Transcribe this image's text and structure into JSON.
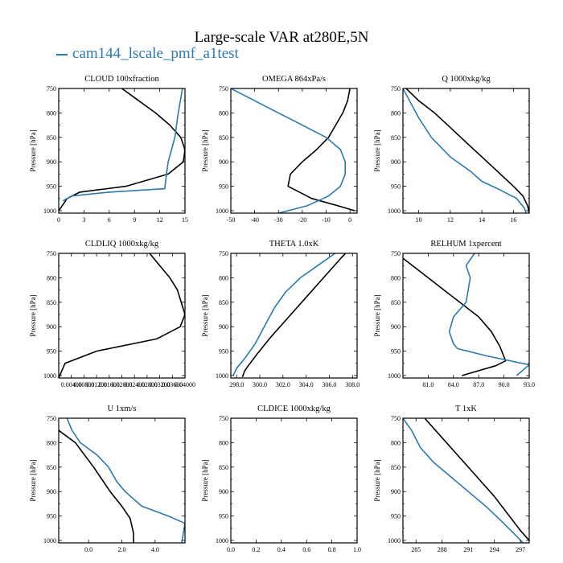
{
  "title": "Large-scale VAR at280E,5N",
  "legend": [
    {
      "label": "cam144_lscale_pmf_a1test",
      "color": "#2a7ab0"
    }
  ],
  "colors": {
    "series_black": "#000000",
    "series_blue": "#2a7ab0"
  },
  "chart_data": [
    {
      "type": "line",
      "title": "CLOUD  100xfraction",
      "ylabel": "Pressure [hPa]",
      "ylim": [
        1005,
        750
      ],
      "xlim": [
        0,
        15
      ],
      "yticks": [
        "750",
        "800",
        "850",
        "900",
        "950",
        "1000"
      ],
      "yticks_values": [
        750,
        800,
        850,
        900,
        950,
        1000
      ],
      "xticks": [
        "0",
        "3",
        "6",
        "9",
        "12",
        "15"
      ],
      "xticks_values": [
        0,
        3,
        6,
        9,
        12,
        15
      ],
      "series": [
        {
          "color": "#000000",
          "x": [
            7.5,
            9.5,
            11.5,
            13.2,
            14.5,
            15.0,
            14.8,
            13.0,
            8.0,
            2.5,
            1.0,
            0.0
          ],
          "y": [
            750,
            775,
            800,
            825,
            850,
            875,
            900,
            925,
            950,
            962,
            975,
            1000
          ]
        },
        {
          "color": "#2a7ab0",
          "x": [
            14.7,
            14.2,
            13.8,
            13.4,
            13.0,
            12.8,
            12.7,
            12.6,
            6.0,
            1.5,
            0.5
          ],
          "y": [
            750,
            800,
            850,
            875,
            900,
            925,
            940,
            955,
            962,
            970,
            980
          ]
        }
      ]
    },
    {
      "type": "line",
      "title": "OMEGA  864xPa/s",
      "ylabel": "Pressure [hPa]",
      "ylim": [
        1005,
        750
      ],
      "xlim": [
        -50,
        3
      ],
      "yticks": [
        "750",
        "800",
        "850",
        "900",
        "950",
        "1000"
      ],
      "yticks_values": [
        750,
        800,
        850,
        900,
        950,
        1000
      ],
      "xticks": [
        "-50",
        "-40",
        "-30",
        "-20",
        "-10",
        "0"
      ],
      "xticks_values": [
        -50,
        -40,
        -30,
        -20,
        -10,
        0
      ],
      "series": [
        {
          "color": "#000000",
          "x": [
            0,
            -1,
            -3,
            -6,
            -9,
            -14,
            -20,
            -25,
            -26,
            -16,
            -5,
            2
          ],
          "y": [
            750,
            775,
            800,
            825,
            850,
            875,
            900,
            925,
            950,
            975,
            990,
            1000
          ]
        },
        {
          "color": "#2a7ab0",
          "x": [
            -50,
            -40,
            -30,
            -20,
            -10,
            -4,
            -2,
            -2,
            -4,
            -9,
            -18,
            -30
          ],
          "y": [
            750,
            775,
            800,
            825,
            850,
            875,
            900,
            925,
            950,
            970,
            990,
            1005
          ]
        }
      ]
    },
    {
      "type": "line",
      "title": "Q  1000xkg/kg",
      "ylabel": "Pressure [hPa]",
      "ylim": [
        1005,
        750
      ],
      "xlim": [
        9,
        17
      ],
      "yticks": [
        "750",
        "800",
        "850",
        "900",
        "950",
        "1000"
      ],
      "yticks_values": [
        750,
        800,
        850,
        900,
        950,
        1000
      ],
      "xticks": [
        "10",
        "12",
        "14",
        "16"
      ],
      "xticks_values": [
        10,
        12,
        14,
        16
      ],
      "series": [
        {
          "color": "#000000",
          "x": [
            9.2,
            10.0,
            11.0,
            12.0,
            13.0,
            14.0,
            15.0,
            16.0,
            16.6,
            16.9,
            17.0
          ],
          "y": [
            750,
            775,
            800,
            830,
            860,
            890,
            920,
            950,
            970,
            990,
            1005
          ]
        },
        {
          "color": "#2a7ab0",
          "x": [
            9.0,
            9.5,
            10.0,
            10.8,
            12.0,
            13.3,
            14.0,
            15.0,
            16.2,
            16.7,
            16.8
          ],
          "y": [
            750,
            780,
            810,
            850,
            890,
            920,
            940,
            955,
            975,
            995,
            1005
          ]
        }
      ]
    },
    {
      "type": "line",
      "title": "CLDLIQ  1000xkg/kg",
      "ylabel": "Pressure [hPa]",
      "ylim": [
        1005,
        750
      ],
      "xlim": [
        0,
        0.04
      ],
      "yticks": [
        "750",
        "800",
        "850",
        "900",
        "950",
        "1000"
      ],
      "yticks_values": [
        750,
        800,
        850,
        900,
        950,
        1000
      ],
      "xticks": [
        "0.00400",
        "0.00800",
        "0.01200",
        "0.01600",
        "0.02000",
        "0.02400",
        "0.02800",
        "0.03200",
        "0.03600",
        "0.04000"
      ],
      "xticks_values": [
        0.004,
        0.008,
        0.012,
        0.016,
        0.02,
        0.024,
        0.028,
        0.032,
        0.036,
        0.04
      ],
      "series": [
        {
          "color": "#000000",
          "x": [
            0.0288,
            0.032,
            0.0352,
            0.0376,
            0.04,
            0.0385,
            0.031,
            0.012,
            0.002,
            0.0
          ],
          "y": [
            750,
            775,
            800,
            825,
            875,
            900,
            925,
            950,
            975,
            1005
          ]
        }
      ]
    },
    {
      "type": "line",
      "title": "THETA  1.0xK",
      "ylabel": "Pressure [hPa]",
      "ylim": [
        1005,
        750
      ],
      "xlim": [
        297.5,
        308.4
      ],
      "yticks": [
        "750",
        "800",
        "850",
        "900",
        "950",
        "1000"
      ],
      "yticks_values": [
        750,
        800,
        850,
        900,
        950,
        1000
      ],
      "xticks": [
        "298.0",
        "300.0",
        "302.0",
        "304.0",
        "306.0",
        "308.0"
      ],
      "xticks_values": [
        298,
        300,
        302,
        304,
        306,
        308
      ],
      "series": [
        {
          "color": "#000000",
          "x": [
            308.4,
            307.0,
            305.5,
            304.0,
            302.5,
            301.0,
            299.8,
            299.0,
            298.7,
            298.5
          ],
          "y": [
            725,
            760,
            800,
            840,
            880,
            920,
            955,
            980,
            990,
            1003
          ]
        },
        {
          "color": "#2a7ab0",
          "x": [
            306.5,
            305.0,
            303.5,
            302.2,
            301.3,
            300.5,
            299.6,
            298.7,
            298.0,
            297.7
          ],
          "y": [
            750,
            775,
            800,
            830,
            860,
            895,
            935,
            965,
            985,
            1000
          ]
        }
      ]
    },
    {
      "type": "line",
      "title": "RELHUM  1xpercent",
      "ylabel": "Pressure [hPa]",
      "ylim": [
        1005,
        750
      ],
      "xlim": [
        78,
        93
      ],
      "yticks": [
        "750",
        "800",
        "850",
        "900",
        "950",
        "1000"
      ],
      "yticks_values": [
        750,
        800,
        850,
        900,
        950,
        1000
      ],
      "xticks": [
        "81.0",
        "84.0",
        "87.0",
        "90.0",
        "93.0"
      ],
      "xticks_values": [
        81,
        84,
        87,
        90,
        93
      ],
      "series": [
        {
          "color": "#000000",
          "x": [
            78.0,
            81.0,
            84.0,
            87.0,
            88.5,
            89.5,
            90.2,
            89.0,
            87.0,
            85.0
          ],
          "y": [
            760,
            800,
            840,
            880,
            910,
            940,
            970,
            980,
            990,
            1000
          ]
        },
        {
          "color": "#2a7ab0",
          "x": [
            86.5,
            85.5,
            86.0,
            85.5,
            84.0,
            83.5,
            84.0,
            84.5,
            88.0,
            93.0,
            91.5
          ],
          "y": [
            750,
            775,
            800,
            850,
            880,
            910,
            935,
            945,
            960,
            978,
            1000
          ]
        }
      ]
    },
    {
      "type": "line",
      "title": "U  1xm/s",
      "ylabel": "Pressure [hPa]",
      "ylim": [
        1005,
        750
      ],
      "xlim": [
        -1.8,
        5.8
      ],
      "yticks": [
        "750",
        "800",
        "850",
        "900",
        "950",
        "1000"
      ],
      "yticks_values": [
        750,
        800,
        850,
        900,
        950,
        1000
      ],
      "xticks": [
        "0.0",
        "2.0",
        "4.0"
      ],
      "xticks_values": [
        0,
        2,
        4
      ],
      "series": [
        {
          "color": "#000000",
          "x": [
            -1.8,
            -0.8,
            0.3,
            1.3,
            2.0,
            2.5,
            2.7,
            2.7
          ],
          "y": [
            775,
            800,
            850,
            900,
            930,
            955,
            985,
            1005
          ]
        },
        {
          "color": "#2a7ab0",
          "x": [
            -1.3,
            -1.0,
            -0.5,
            0.5,
            1.2,
            1.7,
            2.2,
            3.2,
            4.8,
            5.8,
            5.6
          ],
          "y": [
            750,
            775,
            800,
            825,
            850,
            880,
            900,
            930,
            950,
            965,
            1005
          ]
        }
      ]
    },
    {
      "type": "line",
      "title": "CLDICE  1000xkg/kg",
      "ylabel": "Pressure [hPa]",
      "ylim": [
        1005,
        750
      ],
      "xlim": [
        0,
        1
      ],
      "yticks": [
        "750",
        "800",
        "850",
        "900",
        "950",
        "1000"
      ],
      "yticks_values": [
        750,
        800,
        850,
        900,
        950,
        1000
      ],
      "xticks": [
        "0.0",
        "0.2",
        "0.4",
        "0.6",
        "0.8",
        "1.0"
      ],
      "xticks_values": [
        0,
        0.2,
        0.4,
        0.6,
        0.8,
        1.0
      ],
      "series": []
    },
    {
      "type": "line",
      "title": "T  1xK",
      "ylabel": "Pressure [hPa]",
      "ylim": [
        1005,
        750
      ],
      "xlim": [
        283.5,
        298
      ],
      "yticks": [
        "750",
        "800",
        "850",
        "900",
        "950",
        "1000"
      ],
      "yticks_values": [
        750,
        800,
        850,
        900,
        950,
        1000
      ],
      "xticks": [
        "285",
        "288",
        "291",
        "294",
        "297"
      ],
      "xticks_values": [
        285,
        288,
        291,
        294,
        297
      ],
      "series": [
        {
          "color": "#000000",
          "x": [
            286.0,
            288.0,
            290.0,
            292.0,
            294.0,
            295.5,
            297.0,
            298.0
          ],
          "y": [
            750,
            790,
            830,
            870,
            910,
            945,
            980,
            1000
          ]
        },
        {
          "color": "#2a7ab0",
          "x": [
            283.5,
            284.5,
            285.5,
            287.0,
            289.0,
            291.0,
            293.0,
            294.5,
            296.2,
            297.3
          ],
          "y": [
            750,
            775,
            810,
            840,
            870,
            900,
            930,
            955,
            985,
            1005
          ]
        }
      ]
    }
  ]
}
